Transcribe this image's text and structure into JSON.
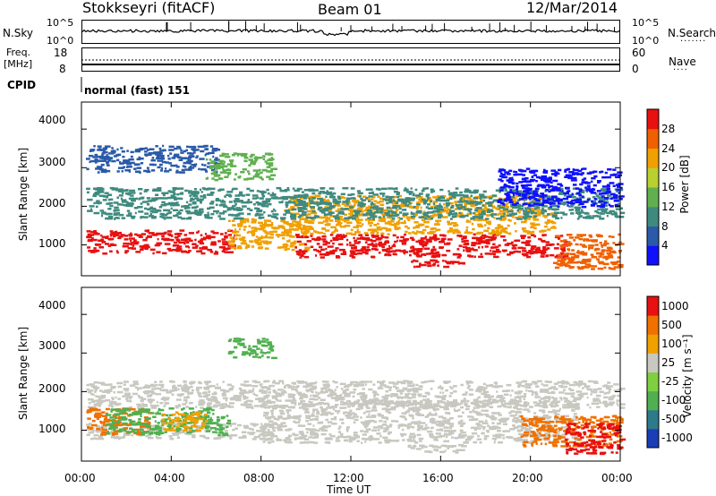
{
  "header": {
    "station": "Stokkseyri (fitACF)",
    "beam": "Beam 01",
    "date": "12/Mar/2014"
  },
  "summary": {
    "nsky_label": "N.Sky",
    "nsky_ticks": [
      "10^5",
      "10^0"
    ],
    "nsearch_label": "N.Search",
    "nsearch_ticks": [
      "10^5",
      "10^0"
    ],
    "freq_label_1": "Freq.",
    "freq_label_2": "[MHz]",
    "freq_ticks": [
      "18",
      "8"
    ],
    "nave_label": "Nave",
    "nave_ticks": [
      "60",
      "0"
    ],
    "cpid_label": "CPID",
    "cpid_value": "normal (fast) 151"
  },
  "chart_data": [
    {
      "type": "heatmap",
      "panel": "power",
      "ylabel": "Slant Range [km]",
      "yticks": [
        "1000",
        "2000",
        "3000",
        "4000"
      ],
      "ylim": [
        200,
        4700
      ],
      "xlim_hours": [
        0,
        24
      ],
      "colorbar": {
        "label": "Power [dB]",
        "ticks": [
          "4",
          "8",
          "12",
          "16",
          "20",
          "24",
          "28"
        ],
        "colors": [
          "#1010ff",
          "#2a5aa8",
          "#3f8a7f",
          "#60b050",
          "#b8d030",
          "#f0a000",
          "#f06000",
          "#e81010"
        ]
      },
      "regions": [
        {
          "t0": 0.2,
          "t1": 6.8,
          "r0": 800,
          "r1": 1400,
          "color": "#e81010"
        },
        {
          "t0": 6.5,
          "t1": 10.0,
          "r0": 900,
          "r1": 1700,
          "color": "#f0a000"
        },
        {
          "t0": 9.5,
          "t1": 21.5,
          "r0": 700,
          "r1": 1300,
          "color": "#e81010"
        },
        {
          "t0": 9.0,
          "t1": 21.0,
          "r0": 1300,
          "r1": 2300,
          "color": "#f0a000"
        },
        {
          "t0": 0.2,
          "t1": 24.0,
          "r0": 1700,
          "r1": 2500,
          "color": "#3f8a7f"
        },
        {
          "t0": 0.2,
          "t1": 6.0,
          "r0": 2900,
          "r1": 3600,
          "color": "#2a5aa8"
        },
        {
          "t0": 5.5,
          "t1": 8.5,
          "r0": 2700,
          "r1": 3400,
          "color": "#60b050"
        },
        {
          "t0": 14.5,
          "t1": 17.0,
          "r0": 450,
          "r1": 650,
          "color": "#e81010"
        },
        {
          "t0": 18.5,
          "t1": 24.0,
          "r0": 2000,
          "r1": 3000,
          "color": "#1010ff"
        },
        {
          "t0": 21.0,
          "t1": 24.0,
          "r0": 400,
          "r1": 1300,
          "color": "#f06000"
        }
      ]
    },
    {
      "type": "heatmap",
      "panel": "velocity",
      "ylabel": "Slant Range [km]",
      "yticks": [
        "1000",
        "2000",
        "3000",
        "4000"
      ],
      "ylim": [
        200,
        4700
      ],
      "xlim_hours": [
        0,
        24
      ],
      "xticks": [
        "00:00",
        "04:00",
        "08:00",
        "12:00",
        "16:00",
        "20:00",
        "00:00"
      ],
      "xlabel": "Time UT",
      "colorbar": {
        "label": "Velocity [m s⁻¹]",
        "ticks": [
          "1000",
          "500",
          "100",
          "25",
          "-25",
          "-100",
          "-500",
          "-1000"
        ],
        "colors": [
          "#1a3db8",
          "#2d7a8a",
          "#50b050",
          "#7fd040",
          "#c8c8c0",
          "#f0a000",
          "#f07000",
          "#e81010"
        ]
      },
      "regions": [
        {
          "t0": 0.2,
          "t1": 8.5,
          "r0": 800,
          "r1": 1200,
          "color": "#c8c8c0"
        },
        {
          "t0": 0.2,
          "t1": 24.0,
          "r0": 1600,
          "r1": 2300,
          "color": "#c8c8c0"
        },
        {
          "t0": 8.0,
          "t1": 22.0,
          "r0": 700,
          "r1": 1800,
          "color": "#c8c8c0"
        },
        {
          "t0": 0.2,
          "t1": 3.0,
          "r0": 900,
          "r1": 1600,
          "color": "#f07000"
        },
        {
          "t0": 1.0,
          "t1": 6.5,
          "r0": 900,
          "r1": 1600,
          "color": "#50b050"
        },
        {
          "t0": 3.5,
          "t1": 5.5,
          "r0": 1000,
          "r1": 1500,
          "color": "#f0a000"
        },
        {
          "t0": 6.5,
          "t1": 8.5,
          "r0": 2900,
          "r1": 3400,
          "color": "#50b050"
        },
        {
          "t0": 19.5,
          "t1": 24.0,
          "r0": 600,
          "r1": 1400,
          "color": "#f07000"
        },
        {
          "t0": 21.5,
          "t1": 24.0,
          "r0": 400,
          "r1": 1200,
          "color": "#e81010"
        },
        {
          "t0": 14.5,
          "t1": 17.0,
          "r0": 450,
          "r1": 650,
          "color": "#c8c8c0"
        }
      ]
    }
  ]
}
